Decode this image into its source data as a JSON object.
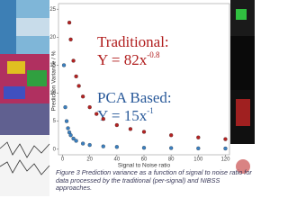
{
  "chart_data": {
    "type": "scatter",
    "y_label": "Prediction Variance / %",
    "x_label": "Signal to Noise ratio",
    "caption": "Figure 3 Prediction variance as a function of signal to noise ratio for data processed by the traditional (per-signal) and NIBSS approaches.",
    "annotations": [
      {
        "label": "Traditional:",
        "equation": "Y = 82x",
        "exponent": "-0.8"
      },
      {
        "label": "PCA Based:",
        "equation": "Y = 15x",
        "exponent": "-1"
      }
    ],
    "xlim": [
      -3,
      123
    ],
    "xticks": [
      0,
      20,
      40,
      60,
      80,
      100,
      120
    ],
    "ylim": [
      -1,
      26
    ],
    "yticks": [
      0,
      5,
      10,
      15,
      20,
      25
    ],
    "series": [
      {
        "name": "Traditional",
        "color": "#b52222",
        "x": [
          5,
          6,
          8,
          10,
          12,
          15,
          20,
          25,
          30,
          40,
          50,
          60,
          80,
          100,
          120
        ],
        "values": [
          22.6,
          19.6,
          15.8,
          13.0,
          11.3,
          9.4,
          7.5,
          6.3,
          5.4,
          4.3,
          3.6,
          3.1,
          2.5,
          2.1,
          1.8
        ]
      },
      {
        "name": "PCA Based",
        "color": "#3a7fc0",
        "x": [
          1,
          2,
          3,
          4,
          5,
          6,
          8,
          10,
          15,
          20,
          30,
          40,
          60,
          80,
          100,
          120
        ],
        "values": [
          15,
          7.5,
          5,
          3.75,
          3,
          2.5,
          1.9,
          1.5,
          1,
          0.75,
          0.5,
          0.4,
          0.25,
          0.2,
          0.15,
          0.12
        ]
      }
    ]
  }
}
